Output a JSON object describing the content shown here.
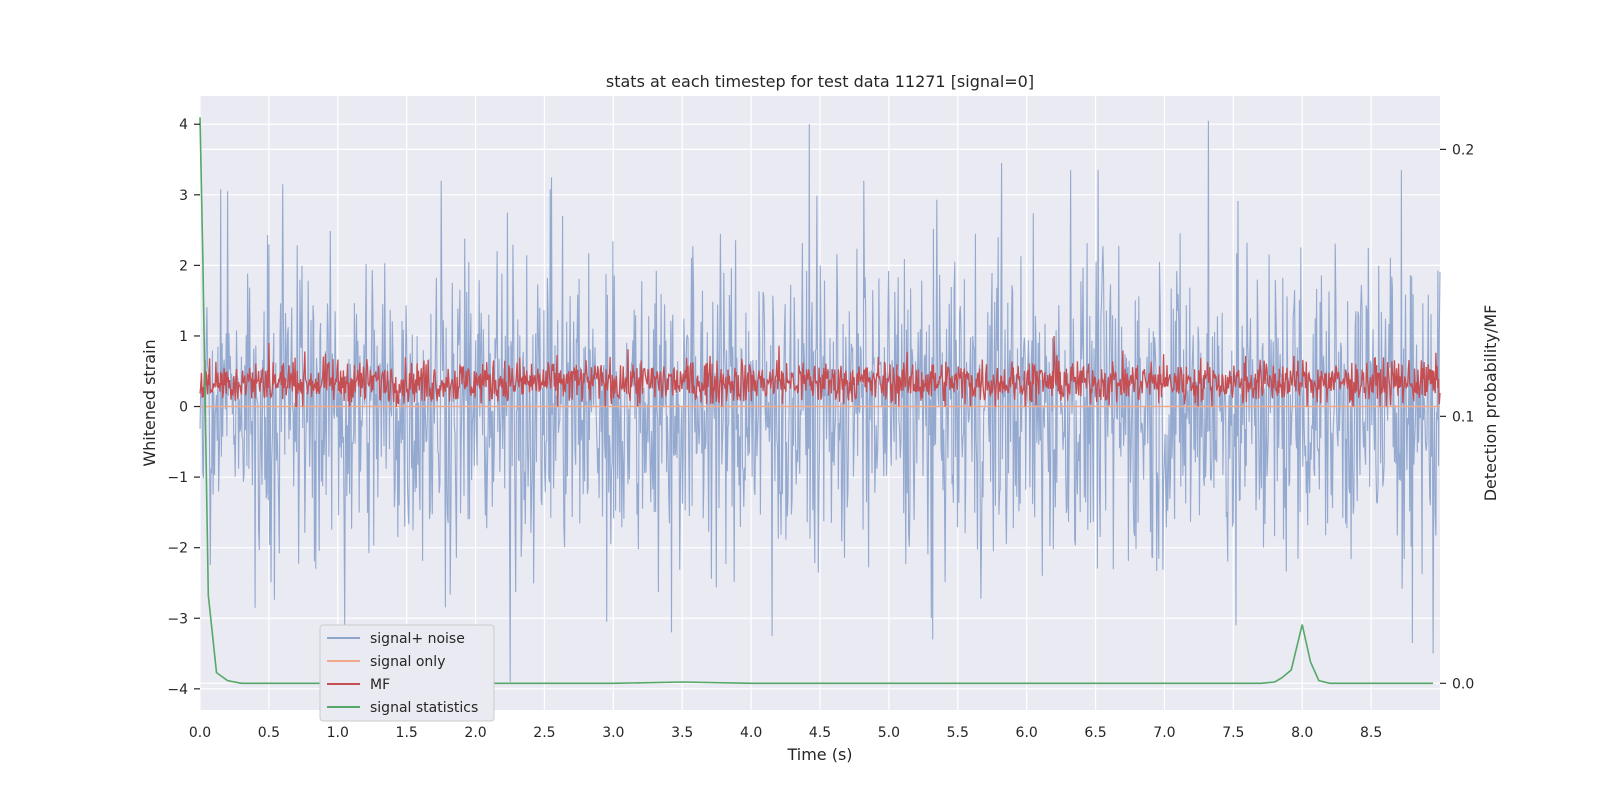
{
  "chart_data": {
    "type": "line",
    "title": "stats at each timestep for test data 11271 [signal=0]",
    "xlabel": "Time (s)",
    "ylabel": "Whitened strain",
    "ylabel_right": "Detection probability/MF",
    "xlim": [
      0.0,
      9.0
    ],
    "ylim": [
      -4.3,
      4.4
    ],
    "ylim_right": [
      -0.01,
      0.22
    ],
    "x_ticks": [
      0.0,
      0.5,
      1.0,
      1.5,
      2.0,
      2.5,
      3.0,
      3.5,
      4.0,
      4.5,
      5.0,
      5.5,
      6.0,
      6.5,
      7.0,
      7.5,
      8.0,
      8.5
    ],
    "x_tick_labels": [
      "0.0",
      "0.5",
      "1.0",
      "1.5",
      "2.0",
      "2.5",
      "3.0",
      "3.5",
      "4.0",
      "4.5",
      "5.0",
      "5.5",
      "6.0",
      "6.5",
      "7.0",
      "7.5",
      "8.0",
      "8.5"
    ],
    "y_ticks": [
      -4,
      -3,
      -2,
      -1,
      0,
      1,
      2,
      3,
      4
    ],
    "y_tick_labels": [
      "−4",
      "−3",
      "−2",
      "−1",
      "0",
      "1",
      "2",
      "3",
      "4"
    ],
    "y_right_ticks": [
      0.0,
      0.1,
      0.2
    ],
    "y_right_tick_labels": [
      "0.0",
      "0.1",
      "0.2"
    ],
    "grid": true,
    "legend_position": "lower-left",
    "legend": [
      {
        "label": "signal+ noise",
        "color": "#8fa5cc"
      },
      {
        "label": "signal only",
        "color": "#f0a98d"
      },
      {
        "label": "MF",
        "color": "#c44e52"
      },
      {
        "label": "signal statistics",
        "color": "#55a868"
      }
    ],
    "series": [
      {
        "name": "signal+ noise",
        "axis": "left",
        "style": "noise",
        "description_values": {
          "typical_range": [
            -2.0,
            2.0
          ],
          "min": -3.9,
          "max": 4.0
        },
        "spikes": [
          {
            "x": 0.2,
            "y": 3.05
          },
          {
            "x": 0.6,
            "y": 3.15
          },
          {
            "x": 1.75,
            "y": 3.2
          },
          {
            "x": 2.55,
            "y": 3.25
          },
          {
            "x": 4.42,
            "y": 4.0
          },
          {
            "x": 4.82,
            "y": 3.2
          },
          {
            "x": 5.82,
            "y": 3.45
          },
          {
            "x": 6.32,
            "y": 3.35
          },
          {
            "x": 6.52,
            "y": 3.35
          },
          {
            "x": 7.32,
            "y": 4.05
          },
          {
            "x": 8.72,
            "y": 3.35
          },
          {
            "x": 0.4,
            "y": -2.85
          },
          {
            "x": 1.05,
            "y": -3.1
          },
          {
            "x": 2.25,
            "y": -3.9
          },
          {
            "x": 2.95,
            "y": -3.05
          },
          {
            "x": 3.42,
            "y": -3.2
          },
          {
            "x": 4.15,
            "y": -3.25
          },
          {
            "x": 5.32,
            "y": -3.3
          },
          {
            "x": 7.52,
            "y": -3.1
          },
          {
            "x": 8.8,
            "y": -3.35
          },
          {
            "x": 8.95,
            "y": -3.5
          }
        ]
      },
      {
        "name": "signal only",
        "axis": "left",
        "x": [
          0.0,
          9.0
        ],
        "y": [
          0.0,
          0.0
        ]
      },
      {
        "name": "MF",
        "axis": "left",
        "style": "noise",
        "description_values": {
          "typical_range": [
            0.0,
            0.7
          ],
          "min": 0.0,
          "max": 1.0
        },
        "spikes": [
          {
            "x": 6.2,
            "y": 1.0
          },
          {
            "x": 0.5,
            "y": 0.9
          },
          {
            "x": 4.2,
            "y": 0.85
          }
        ]
      },
      {
        "name": "signal statistics",
        "axis": "right",
        "x": [
          0.0,
          0.02,
          0.06,
          0.12,
          0.2,
          0.3,
          0.5,
          1.0,
          1.5,
          2.0,
          2.5,
          3.0,
          3.5,
          4.0,
          5.0,
          6.0,
          7.0,
          7.7,
          7.8,
          7.85,
          7.92,
          8.0,
          8.06,
          8.12,
          8.2,
          8.5,
          8.95
        ],
        "y": [
          0.212,
          0.16,
          0.033,
          0.004,
          0.001,
          0.0,
          0.0,
          0.0,
          0.0,
          0.0,
          0.0,
          0.0,
          0.0005,
          0.0,
          0.0,
          0.0,
          0.0,
          0.0,
          0.0005,
          0.002,
          0.005,
          0.022,
          0.008,
          0.001,
          0.0,
          0.0,
          0.0
        ]
      }
    ]
  }
}
